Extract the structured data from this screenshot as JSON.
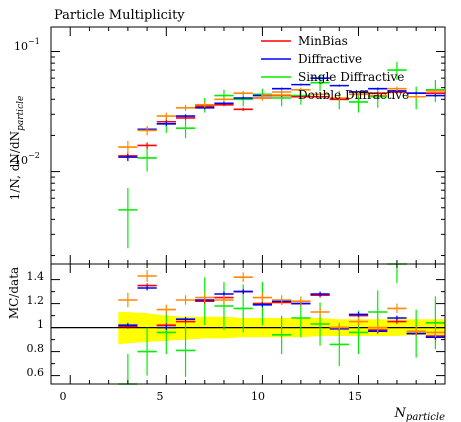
{
  "chart_data": {
    "type": "scatter",
    "title": "Particle Multiplicity",
    "ylabel_main": "1/N, dN/dN",
    "ylabel_main_sub": "particle",
    "ylabel_ratio": "MC/data",
    "xlabel": "N",
    "xlabel_sub": "particle",
    "x_tick_labels": [
      "0",
      "5",
      "10",
      "15"
    ],
    "main_y_tick_labels": [
      {
        "base": "10",
        "exp": "−1"
      },
      {
        "base": "10",
        "exp": "−2"
      }
    ],
    "ratio_y_tick_labels": [
      "1.4",
      "1.2",
      "1",
      "0.8",
      "0.6"
    ],
    "xlim": [
      -1,
      19.5
    ],
    "main_ylog": true,
    "main_ylim": [
      0.0017,
      0.16
    ],
    "ratio_ylim": [
      0.53,
      1.53
    ],
    "legend_position": "top-right",
    "colors": {
      "MinBias": "#ff0000",
      "Diffractive": "#0000ff",
      "Single Diffractive": "#00ee00",
      "Double Diffractive": "#ff8800",
      "band": "#ffff00"
    },
    "series": [
      {
        "name": "MinBias",
        "x": [
          3,
          4,
          5,
          6,
          7,
          8,
          9,
          10,
          11,
          12,
          13,
          14,
          15,
          16,
          17,
          18,
          19
        ],
        "y": [
          0.0135,
          0.0165,
          0.026,
          0.028,
          0.035,
          0.036,
          0.033,
          0.041,
          0.043,
          0.042,
          0.042,
          0.04,
          0.046,
          0.045,
          0.046,
          0.045,
          0.045
        ],
        "yerr": [
          0.001,
          0.001,
          0.001,
          0.001,
          0.001,
          0.001,
          0.001,
          0.001,
          0.001,
          0.001,
          0.001,
          0.001,
          0.001,
          0.001,
          0.001,
          0.001,
          0.001
        ],
        "ratio": [
          1.01,
          1.35,
          1.02,
          1.05,
          1.22,
          1.25,
          1.3,
          1.2,
          1.21,
          1.2,
          1.27,
          1.0,
          1.1,
          0.98,
          1.05,
          0.95,
          0.93
        ],
        "ratio_err": [
          0.02,
          0.02,
          0.02,
          0.02,
          0.02,
          0.02,
          0.02,
          0.02,
          0.02,
          0.02,
          0.02,
          0.02,
          0.02,
          0.02,
          0.02,
          0.02,
          0.02
        ]
      },
      {
        "name": "Diffractive",
        "x": [
          3,
          4,
          5,
          6,
          7,
          8,
          9,
          10,
          11,
          12,
          13,
          14,
          15,
          16,
          17,
          18,
          19
        ],
        "y": [
          0.0132,
          0.0225,
          0.025,
          0.029,
          0.034,
          0.037,
          0.041,
          0.043,
          0.049,
          0.053,
          0.06,
          0.052,
          0.046,
          0.049,
          0.047,
          0.045,
          0.043
        ],
        "yerr": [
          0.001,
          0.001,
          0.001,
          0.001,
          0.001,
          0.001,
          0.001,
          0.001,
          0.001,
          0.001,
          0.001,
          0.001,
          0.001,
          0.001,
          0.001,
          0.001,
          0.001
        ],
        "ratio": [
          1.02,
          1.33,
          1.0,
          1.07,
          1.23,
          1.28,
          1.3,
          1.19,
          1.22,
          1.2,
          1.28,
          0.99,
          1.11,
          0.97,
          1.08,
          0.95,
          0.92
        ],
        "ratio_err": [
          0.02,
          0.02,
          0.02,
          0.02,
          0.02,
          0.02,
          0.02,
          0.02,
          0.02,
          0.02,
          0.02,
          0.02,
          0.02,
          0.02,
          0.02,
          0.02,
          0.02
        ]
      },
      {
        "name": "Single Diffractive",
        "x": [
          3,
          4,
          5,
          6,
          7,
          8,
          9,
          10,
          11,
          12,
          13,
          14,
          15,
          16,
          17,
          18,
          19
        ],
        "y": [
          0.0048,
          0.013,
          0.025,
          0.023,
          0.036,
          0.043,
          0.04,
          0.044,
          0.041,
          0.043,
          0.055,
          0.04,
          0.038,
          0.042,
          0.07,
          0.042,
          0.048
        ],
        "yerr": [
          0.0025,
          0.003,
          0.004,
          0.004,
          0.005,
          0.005,
          0.005,
          0.005,
          0.006,
          0.007,
          0.008,
          0.007,
          0.007,
          0.008,
          0.012,
          0.009,
          0.01
        ],
        "ratio": [
          0.53,
          0.8,
          0.96,
          0.81,
          1.22,
          1.18,
          1.16,
          1.2,
          0.94,
          1.08,
          1.03,
          0.86,
          0.96,
          1.13,
          1.65,
          0.95,
          1.04
        ],
        "ratio_err": [
          0.25,
          0.2,
          0.18,
          0.22,
          0.2,
          0.2,
          0.2,
          0.18,
          0.16,
          0.16,
          0.18,
          0.18,
          0.18,
          0.18,
          0.28,
          0.2,
          0.22
        ]
      },
      {
        "name": "Double Diffractive",
        "x": [
          3,
          4,
          5,
          6,
          7,
          8,
          9,
          10,
          11,
          12,
          13,
          14,
          15,
          16,
          17,
          18,
          19
        ],
        "y": [
          0.016,
          0.022,
          0.029,
          0.034,
          0.036,
          0.04,
          0.045,
          0.041,
          0.046,
          0.048,
          0.044,
          0.041,
          0.044,
          0.043,
          0.049,
          0.042,
          0.047
        ],
        "yerr": [
          0.002,
          0.002,
          0.002,
          0.002,
          0.002,
          0.002,
          0.002,
          0.002,
          0.002,
          0.002,
          0.002,
          0.002,
          0.002,
          0.002,
          0.002,
          0.002,
          0.002
        ],
        "ratio": [
          1.23,
          1.43,
          1.15,
          1.23,
          1.25,
          1.23,
          1.42,
          1.25,
          1.23,
          1.22,
          1.13,
          1.0,
          1.05,
          1.0,
          1.16,
          0.97,
          0.96
        ],
        "ratio_err": [
          0.06,
          0.05,
          0.04,
          0.04,
          0.04,
          0.04,
          0.04,
          0.04,
          0.04,
          0.04,
          0.04,
          0.04,
          0.04,
          0.04,
          0.04,
          0.04,
          0.04
        ]
      }
    ],
    "reference_band": {
      "x": [
        2.5,
        3,
        4,
        5,
        6,
        7,
        8,
        9,
        10,
        11,
        12,
        13,
        14,
        15,
        16,
        17,
        18,
        19.5
      ],
      "upper": [
        1.13,
        1.13,
        1.12,
        1.1,
        1.09,
        1.09,
        1.09,
        1.08,
        1.08,
        1.08,
        1.08,
        1.08,
        1.07,
        1.07,
        1.07,
        1.07,
        1.07,
        1.07
      ],
      "lower": [
        0.86,
        0.87,
        0.88,
        0.89,
        0.9,
        0.91,
        0.91,
        0.92,
        0.92,
        0.92,
        0.92,
        0.93,
        0.93,
        0.93,
        0.93,
        0.93,
        0.94,
        0.94
      ]
    }
  }
}
